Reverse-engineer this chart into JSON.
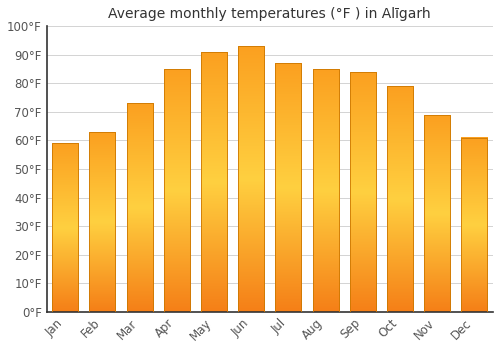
{
  "title": "Average monthly temperatures (°F ) in Alīgarh",
  "months": [
    "Jan",
    "Feb",
    "Mar",
    "Apr",
    "May",
    "Jun",
    "Jul",
    "Aug",
    "Sep",
    "Oct",
    "Nov",
    "Dec"
  ],
  "values": [
    59,
    63,
    73,
    85,
    91,
    93,
    87,
    85,
    84,
    79,
    69,
    61
  ],
  "bar_color_light": "#FFB300",
  "bar_color_dark": "#F57F17",
  "background_color": "#FFFFFF",
  "grid_color": "#CCCCCC",
  "text_color": "#555555",
  "ylim": [
    0,
    100
  ],
  "yticks": [
    0,
    10,
    20,
    30,
    40,
    50,
    60,
    70,
    80,
    90,
    100
  ],
  "title_fontsize": 10,
  "tick_fontsize": 8.5
}
